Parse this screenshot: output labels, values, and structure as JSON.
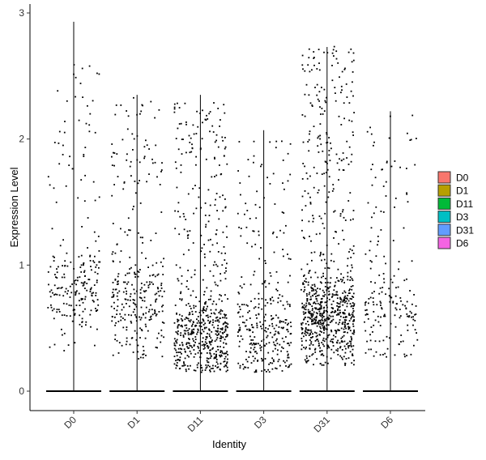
{
  "chart_data": {
    "type": "violin",
    "xlabel": "Identity",
    "ylabel": "Expression Level",
    "categories": [
      "D0",
      "D1",
      "D11",
      "D3",
      "D31",
      "D6"
    ],
    "ylim": [
      -0.15,
      3.05
    ],
    "yticks": [
      0,
      1,
      2,
      3
    ],
    "max_values": [
      2.93,
      2.35,
      2.35,
      2.07,
      2.73,
      2.22
    ],
    "legend": {
      "position": "right",
      "entries": [
        {
          "name": "D0",
          "color": "#F8766D"
        },
        {
          "name": "D1",
          "color": "#B79F00"
        },
        {
          "name": "D11",
          "color": "#00BA38"
        },
        {
          "name": "D3",
          "color": "#00BFC4"
        },
        {
          "name": "D31",
          "color": "#619CFF"
        },
        {
          "name": "D6",
          "color": "#F564E3"
        }
      ]
    },
    "points": {
      "show": true,
      "jitter_count": [
        230,
        310,
        620,
        330,
        820,
        190
      ],
      "positive_ranges": [
        [
          0.3,
          2.6
        ],
        [
          0.25,
          2.35
        ],
        [
          0.15,
          2.3
        ],
        [
          0.15,
          2.05
        ],
        [
          0.2,
          2.75
        ],
        [
          0.25,
          2.2
        ]
      ],
      "dense_center": [
        0.8,
        0.7,
        0.42,
        0.45,
        0.6,
        0.6
      ]
    },
    "grid": false
  }
}
